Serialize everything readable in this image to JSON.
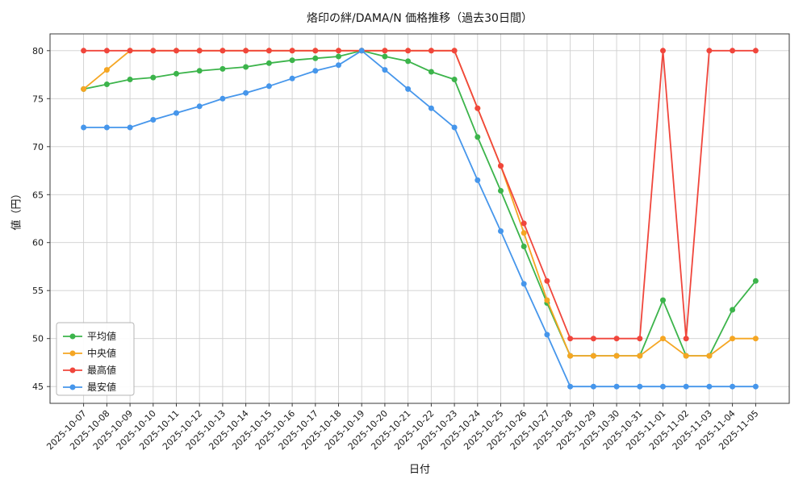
{
  "page": {
    "background": "#ffffff"
  },
  "chart_data": {
    "type": "line",
    "title": "烙印の絆/DAMA/N 価格推移（過去30日間）",
    "xlabel": "日付",
    "ylabel": "値（円）",
    "grid": true,
    "legend_position": "lower-left",
    "ylim": [
      43.25,
      81.75
    ],
    "yticks": [
      45,
      50,
      55,
      60,
      65,
      70,
      75,
      80
    ],
    "x": [
      "2025-10-07",
      "2025-10-08",
      "2025-10-09",
      "2025-10-10",
      "2025-10-11",
      "2025-10-12",
      "2025-10-13",
      "2025-10-14",
      "2025-10-15",
      "2025-10-16",
      "2025-10-17",
      "2025-10-18",
      "2025-10-19",
      "2025-10-20",
      "2025-10-21",
      "2025-10-22",
      "2025-10-23",
      "2025-10-24",
      "2025-10-25",
      "2025-10-26",
      "2025-10-27",
      "2025-10-28",
      "2025-10-29",
      "2025-10-30",
      "2025-10-31",
      "2025-11-01",
      "2025-11-02",
      "2025-11-03",
      "2025-11-04",
      "2025-11-05"
    ],
    "series": [
      {
        "name": "平均値",
        "key": "average",
        "color": "#3cb44b",
        "values": [
          76,
          76.5,
          77,
          77.2,
          77.6,
          77.9,
          78.1,
          78.3,
          78.7,
          79,
          79.2,
          79.4,
          80,
          79.4,
          78.9,
          77.8,
          77,
          71,
          65.4,
          59.6,
          53.7,
          48.2,
          48.2,
          48.2,
          48.2,
          54,
          48.2,
          48.2,
          53,
          56
        ]
      },
      {
        "name": "中央値",
        "key": "median",
        "color": "#f5a623",
        "values": [
          76,
          78,
          80,
          80,
          80,
          80,
          80,
          80,
          80,
          80,
          80,
          80,
          80,
          80,
          80,
          80,
          80,
          74,
          68,
          61,
          54,
          48.2,
          48.2,
          48.2,
          48.2,
          50,
          48.2,
          48.2,
          50,
          50
        ]
      },
      {
        "name": "最高値",
        "key": "max",
        "color": "#f0463c",
        "values": [
          80,
          80,
          80,
          80,
          80,
          80,
          80,
          80,
          80,
          80,
          80,
          80,
          80,
          80,
          80,
          80,
          80,
          74,
          68,
          62,
          56,
          50,
          50,
          50,
          50,
          80,
          50,
          80,
          80,
          80
        ]
      },
      {
        "name": "最安値",
        "key": "min",
        "color": "#4696eb",
        "values": [
          72,
          72,
          72,
          72.8,
          73.5,
          74.2,
          75,
          75.6,
          76.3,
          77.1,
          77.9,
          78.5,
          80,
          78,
          76,
          74,
          72,
          66.5,
          61.2,
          55.7,
          50.4,
          45,
          45,
          45,
          45,
          45,
          45,
          45,
          45,
          45
        ]
      }
    ]
  }
}
